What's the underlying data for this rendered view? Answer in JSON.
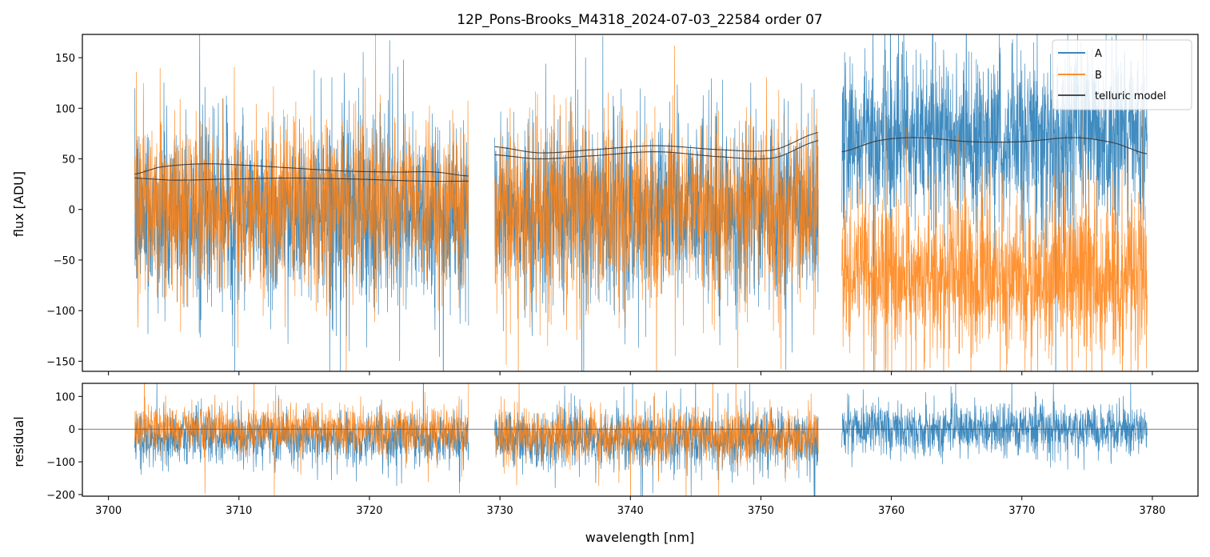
{
  "figure": {
    "title": "12P_Pons-Brooks_M4318_2024-07-03_22584  order 07"
  },
  "colors": {
    "A": "#1f77b4",
    "B": "#ff7f0e",
    "telluric": "#333333",
    "zero_line": "#555555"
  },
  "chart_data": [
    {
      "type": "line",
      "panel": "flux",
      "title": "12P_Pons-Brooks_M4318_2024-07-03_22584  order 07",
      "xlabel": "",
      "ylabel": "flux [ADU]",
      "xlim": [
        3698,
        3783.5
      ],
      "ylim": [
        -160,
        173
      ],
      "yticks": [
        150,
        100,
        50,
        0,
        -50,
        -100,
        -150
      ],
      "ytick_labels": [
        "150",
        "100",
        "50",
        "0",
        "−50",
        "−100",
        "−150"
      ],
      "xticks": [
        3700,
        3710,
        3720,
        3730,
        3740,
        3750,
        3760,
        3770,
        3780
      ],
      "legend": {
        "location": "upper right",
        "entries": [
          "A",
          "B",
          "telluric model"
        ]
      },
      "segments": [
        {
          "x_range": [
            3702.0,
            3727.6
          ],
          "A_level": -5,
          "A_scale": 45,
          "B_level": 5,
          "B_scale": 40
        },
        {
          "x_range": [
            3729.6,
            3754.4
          ],
          "A_level": 0,
          "A_scale": 45,
          "B_level": 0,
          "B_scale": 42
        },
        {
          "x_range": [
            3756.2,
            3779.6
          ],
          "A_level": 70,
          "A_scale": 42,
          "B_level": -65,
          "B_scale": 40
        }
      ],
      "telluric_model": [
        {
          "name": "telluric model",
          "x": [
            3702.0,
            3704,
            3707,
            3710,
            3714,
            3718,
            3722,
            3725,
            3727.6
          ],
          "y": [
            35,
            42,
            45,
            44,
            41,
            38,
            37,
            37,
            33
          ]
        },
        {
          "name": "telluric model",
          "x": [
            3702.0,
            3705,
            3709,
            3714,
            3719,
            3724,
            3727.6
          ],
          "y": [
            31,
            29,
            30,
            31,
            30,
            28,
            28
          ]
        },
        {
          "name": "telluric model",
          "x": [
            3729.6,
            3733,
            3737,
            3742,
            3747,
            3751,
            3754.4
          ],
          "y": [
            62,
            56,
            59,
            63,
            59,
            59,
            76
          ]
        },
        {
          "name": "telluric model",
          "x": [
            3729.6,
            3733,
            3737,
            3742,
            3747,
            3751,
            3754.4
          ],
          "y": [
            54,
            50,
            53,
            57,
            52,
            51,
            68
          ]
        },
        {
          "name": "telluric model",
          "x": [
            3756.2,
            3759,
            3762,
            3766,
            3770,
            3774,
            3777,
            3779.6
          ],
          "y": [
            57,
            68,
            71,
            67,
            67,
            71,
            66,
            55
          ]
        }
      ]
    },
    {
      "type": "line",
      "panel": "residual",
      "xlabel": "wavelength [nm]",
      "ylabel": "residual",
      "xlim": [
        3698,
        3783.5
      ],
      "ylim": [
        -205,
        140
      ],
      "yticks": [
        100,
        0,
        -100,
        -200
      ],
      "ytick_labels": [
        "100",
        "0",
        "−100",
        "−200"
      ],
      "xticks": [
        3700,
        3710,
        3720,
        3730,
        3740,
        3750,
        3760,
        3770,
        3780
      ],
      "xtick_labels": [
        "3700",
        "3710",
        "3720",
        "3730",
        "3740",
        "3750",
        "3760",
        "3770",
        "3780"
      ],
      "zero_line": 0,
      "segments": [
        {
          "x_range": [
            3702.0,
            3727.6
          ],
          "A_level": -25,
          "A_scale": 40,
          "B_level": 0,
          "B_scale": 35
        },
        {
          "x_range": [
            3729.6,
            3754.4
          ],
          "A_level": -35,
          "A_scale": 45,
          "B_level": -20,
          "B_scale": 40
        },
        {
          "x_range": [
            3756.2,
            3779.6
          ],
          "A_level": 0,
          "A_scale": 40
        }
      ]
    }
  ]
}
